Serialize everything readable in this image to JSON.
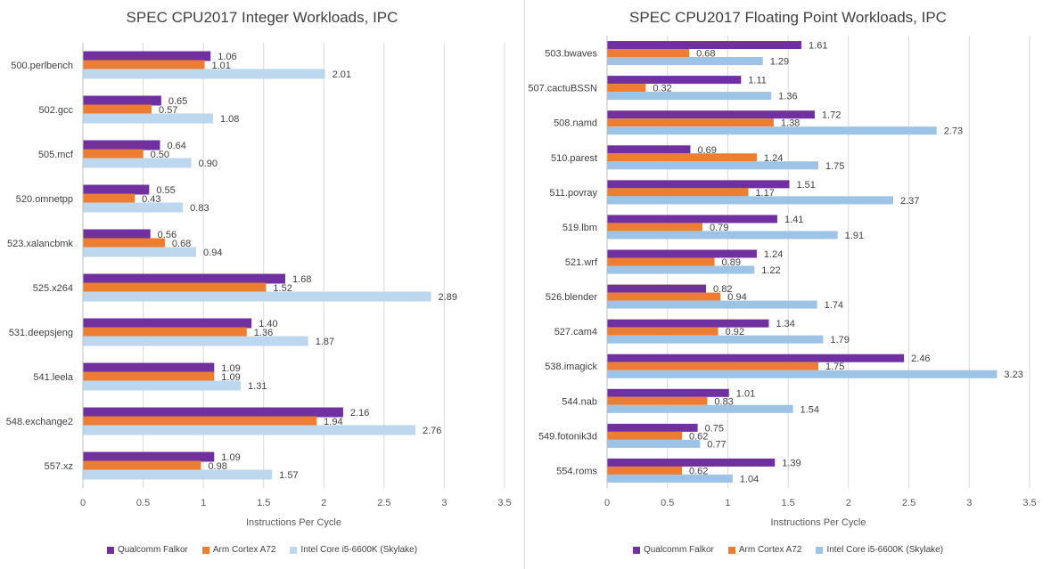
{
  "chart_data": [
    {
      "type": "bar",
      "orientation": "horizontal",
      "title": "SPEC CPU2017 Integer Workloads, IPC",
      "xlabel": "Instructions Per Cycle",
      "ylabel": "",
      "xlim": [
        0,
        3.5
      ],
      "xticks": [
        "0",
        "0.5",
        "1",
        "1.5",
        "2",
        "2.5",
        "3",
        "3.5"
      ],
      "grid": true,
      "legend_position": "bottom",
      "categories": [
        "500.perlbench",
        "502.gcc",
        "505.mcf",
        "520.omnetpp",
        "523.xalancbmk",
        "525.x264",
        "531.deepsjeng",
        "541.leela",
        "548.exchange2",
        "557.xz"
      ],
      "series": [
        {
          "name": "Qualcomm Falkor",
          "color": "#7030a0",
          "values": [
            1.06,
            0.65,
            0.64,
            0.55,
            0.56,
            1.68,
            1.4,
            1.09,
            2.16,
            1.09
          ],
          "labels": [
            "1.06",
            "0.65",
            "0.64",
            "0.55",
            "0.56",
            "1.68",
            "1.40",
            "1.09",
            "2.16",
            "1.09"
          ]
        },
        {
          "name": "Arm Cortex A72",
          "color": "#ed7d31",
          "values": [
            1.01,
            0.57,
            0.5,
            0.43,
            0.68,
            1.52,
            1.36,
            1.09,
            1.94,
            0.98
          ],
          "labels": [
            "1.01",
            "0.57",
            "0.50",
            "0.43",
            "0.68",
            "1.52",
            "1.36",
            "1.09",
            "1.94",
            "0.98"
          ]
        },
        {
          "name": "Intel Core i5-6600K (Skylake)",
          "color": "#bdd7ee",
          "values": [
            2.01,
            1.08,
            0.9,
            0.83,
            0.94,
            2.89,
            1.87,
            1.31,
            2.76,
            1.57
          ],
          "labels": [
            "2.01",
            "1.08",
            "0.90",
            "0.83",
            "0.94",
            "2.89",
            "1.87",
            "1.31",
            "2.76",
            "1.57"
          ]
        }
      ]
    },
    {
      "type": "bar",
      "orientation": "horizontal",
      "title": "SPEC CPU2017 Floating Point Workloads, IPC",
      "xlabel": "Instructions Per Cycle",
      "ylabel": "",
      "xlim": [
        0,
        3.5
      ],
      "xticks": [
        "0",
        "0.5",
        "1",
        "1.5",
        "2",
        "2.5",
        "3",
        "3.5"
      ],
      "grid": true,
      "legend_position": "bottom",
      "categories": [
        "503.bwaves",
        "507.cactuBSSN",
        "508.namd",
        "510.parest",
        "511.povray",
        "519.lbm",
        "521.wrf",
        "526.blender",
        "527.cam4",
        "538.imagick",
        "544.nab",
        "549.fotonik3d",
        "554.roms"
      ],
      "series": [
        {
          "name": "Qualcomm Falkor",
          "color": "#7030a0",
          "values": [
            1.61,
            1.11,
            1.72,
            0.69,
            1.51,
            1.41,
            1.24,
            0.82,
            1.34,
            2.46,
            1.01,
            0.75,
            1.39
          ],
          "labels": [
            "1.61",
            "1.11",
            "1.72",
            "0.69",
            "1.51",
            "1.41",
            "1.24",
            "0.82",
            "1.34",
            "2.46",
            "1.01",
            "0.75",
            "1.39"
          ]
        },
        {
          "name": "Arm Cortex A72",
          "color": "#ed7d31",
          "values": [
            0.68,
            0.32,
            1.38,
            1.24,
            1.17,
            0.79,
            0.89,
            0.94,
            0.92,
            1.75,
            0.83,
            0.62,
            0.62
          ],
          "labels": [
            "0.68",
            "0.32",
            "1.38",
            "1.24",
            "1.17",
            "0.79",
            "0.89",
            "0.94",
            "0.92",
            "1.75",
            "0.83",
            "0.62",
            "0.62"
          ]
        },
        {
          "name": "Intel Core i5-6600K (Skylake)",
          "color": "#9dc3e6",
          "values": [
            1.29,
            1.36,
            2.73,
            1.75,
            2.37,
            1.91,
            1.22,
            1.74,
            1.79,
            3.23,
            1.54,
            0.77,
            1.04
          ],
          "labels": [
            "1.29",
            "1.36",
            "2.73",
            "1.75",
            "2.37",
            "1.91",
            "1.22",
            "1.74",
            "1.79",
            "3.23",
            "1.54",
            "0.77",
            "1.04"
          ]
        }
      ]
    }
  ]
}
